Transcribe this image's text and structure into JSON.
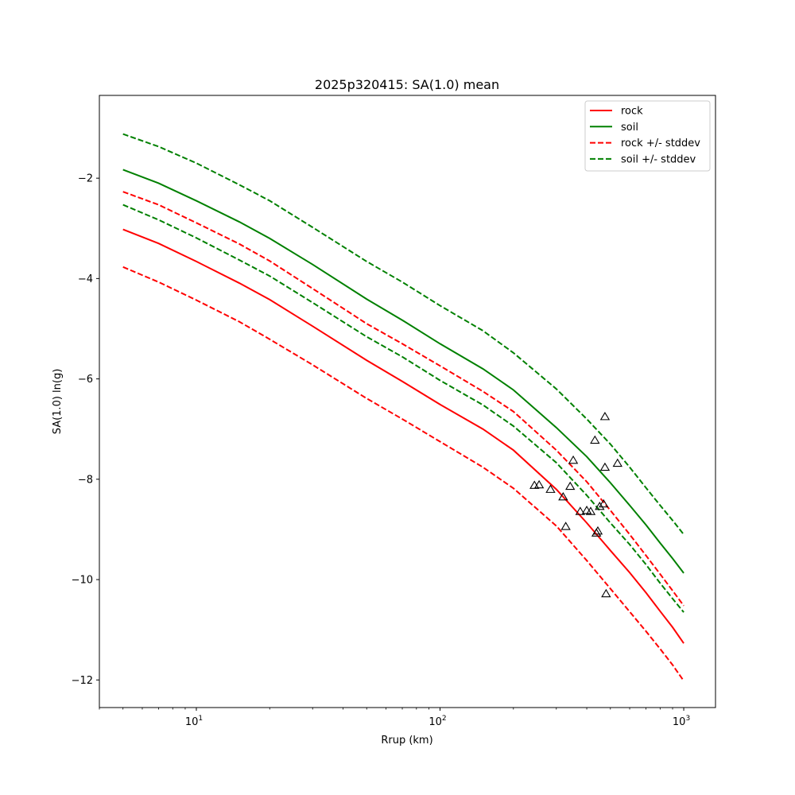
{
  "chart_data": {
    "type": "line",
    "title": "2025p320415: SA(1.0) mean",
    "xlabel": "Rrup (km)",
    "ylabel": "SA(1.0) ln(g)",
    "xscale": "log",
    "xlim": [
      4,
      1350
    ],
    "ylim": [
      -12.55,
      -0.35
    ],
    "x_major_ticks": [
      {
        "value": 10,
        "base": "10",
        "exp": "1"
      },
      {
        "value": 100,
        "base": "10",
        "exp": "2"
      },
      {
        "value": 1000,
        "base": "10",
        "exp": "3"
      }
    ],
    "y_ticks": [
      {
        "value": -2,
        "label": "−2"
      },
      {
        "value": -4,
        "label": "−4"
      },
      {
        "value": -6,
        "label": "−6"
      },
      {
        "value": -8,
        "label": "−8"
      },
      {
        "value": -10,
        "label": "−10"
      },
      {
        "value": -12,
        "label": "−12"
      }
    ],
    "grid": false,
    "legend_position": "top-right",
    "x": [
      5,
      7,
      10,
      15,
      20,
      30,
      50,
      70,
      100,
      150,
      200,
      300,
      400,
      500,
      600,
      700,
      800,
      900,
      1000
    ],
    "series": [
      {
        "name": "rock",
        "color": "#ff0000",
        "dash": "solid",
        "values": [
          -3.02,
          -3.3,
          -3.66,
          -4.09,
          -4.42,
          -4.95,
          -5.63,
          -6.05,
          -6.51,
          -7.0,
          -7.42,
          -8.2,
          -8.87,
          -9.42,
          -9.86,
          -10.26,
          -10.63,
          -10.95,
          -11.27
        ]
      },
      {
        "name": "soil",
        "color": "#008000",
        "dash": "solid",
        "values": [
          -1.83,
          -2.1,
          -2.45,
          -2.87,
          -3.2,
          -3.72,
          -4.41,
          -4.83,
          -5.3,
          -5.8,
          -6.22,
          -6.97,
          -7.55,
          -8.07,
          -8.52,
          -8.91,
          -9.27,
          -9.58,
          -9.87
        ]
      },
      {
        "name": "rock +/- stddev",
        "color": "#ff0000",
        "dash": "dashed",
        "values": [
          -2.27,
          -2.53,
          -2.89,
          -3.31,
          -3.65,
          -4.2,
          -4.9,
          -5.3,
          -5.74,
          -6.25,
          -6.65,
          -7.42,
          -8.05,
          -8.62,
          -9.1,
          -9.52,
          -9.89,
          -10.22,
          -10.52
        ]
      },
      {
        "name": "rock +/- stddev",
        "color": "#ff0000",
        "dash": "dashed",
        "values": [
          -3.77,
          -4.07,
          -4.43,
          -4.86,
          -5.21,
          -5.72,
          -6.39,
          -6.8,
          -7.25,
          -7.76,
          -8.18,
          -8.93,
          -9.62,
          -10.18,
          -10.64,
          -11.03,
          -11.38,
          -11.7,
          -12.02
        ]
      },
      {
        "name": "soil +/- stddev",
        "color": "#008000",
        "dash": "dashed",
        "values": [
          -1.12,
          -1.37,
          -1.7,
          -2.13,
          -2.45,
          -2.98,
          -3.66,
          -4.07,
          -4.54,
          -5.04,
          -5.48,
          -6.2,
          -6.8,
          -7.3,
          -7.76,
          -8.17,
          -8.52,
          -8.82,
          -9.1
        ]
      },
      {
        "name": "soil +/- stddev",
        "color": "#008000",
        "dash": "dashed",
        "values": [
          -2.53,
          -2.83,
          -3.19,
          -3.63,
          -3.95,
          -4.48,
          -5.16,
          -5.56,
          -6.03,
          -6.52,
          -6.94,
          -7.67,
          -8.32,
          -8.87,
          -9.3,
          -9.7,
          -10.07,
          -10.38,
          -10.65
        ]
      }
    ],
    "observations": {
      "marker": "triangle",
      "points": [
        {
          "x": 244,
          "y": -8.13
        },
        {
          "x": 255,
          "y": -8.12
        },
        {
          "x": 284,
          "y": -8.21
        },
        {
          "x": 320,
          "y": -8.36
        },
        {
          "x": 328,
          "y": -8.95
        },
        {
          "x": 342,
          "y": -8.15
        },
        {
          "x": 352,
          "y": -7.63
        },
        {
          "x": 376,
          "y": -8.65
        },
        {
          "x": 400,
          "y": -8.63
        },
        {
          "x": 415,
          "y": -8.65
        },
        {
          "x": 432,
          "y": -7.23
        },
        {
          "x": 438,
          "y": -9.08
        },
        {
          "x": 444,
          "y": -9.04
        },
        {
          "x": 452,
          "y": -8.55
        },
        {
          "x": 469,
          "y": -8.5
        },
        {
          "x": 475,
          "y": -6.76
        },
        {
          "x": 475,
          "y": -7.77
        },
        {
          "x": 480,
          "y": -10.29
        },
        {
          "x": 535,
          "y": -7.69
        }
      ]
    },
    "legend": [
      {
        "label": "rock",
        "color": "#ff0000",
        "dash": "solid"
      },
      {
        "label": "soil",
        "color": "#008000",
        "dash": "solid"
      },
      {
        "label": "rock +/- stddev",
        "color": "#ff0000",
        "dash": "dashed"
      },
      {
        "label": "soil +/- stddev",
        "color": "#008000",
        "dash": "dashed"
      }
    ]
  }
}
